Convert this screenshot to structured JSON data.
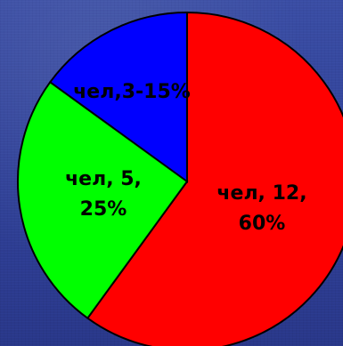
{
  "chart_data": {
    "type": "pie",
    "slices": [
      {
        "label_lines": [
          "чел, 12,",
          "60%"
        ],
        "value": 60,
        "color": "#ff0000"
      },
      {
        "label_lines": [
          "чел, 5,",
          "25%"
        ],
        "value": 25,
        "color": "#00ff00"
      },
      {
        "label_lines": [
          "чел,3-15%"
        ],
        "value": 15,
        "color": "#0000ff"
      }
    ]
  }
}
